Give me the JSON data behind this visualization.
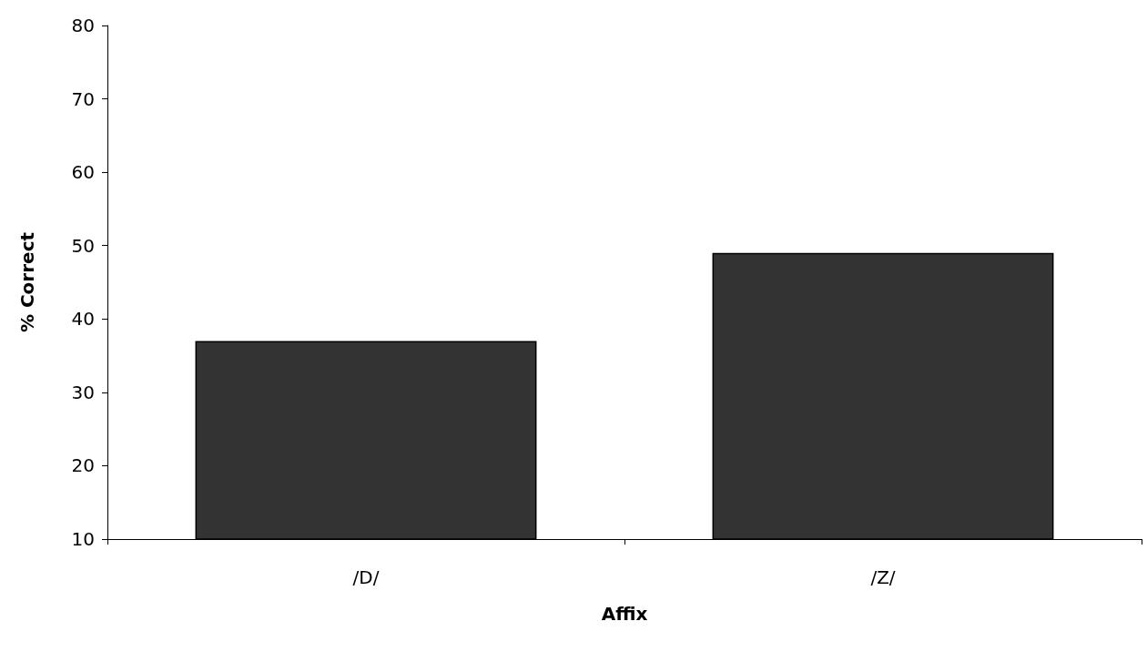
{
  "chart_data": {
    "type": "bar",
    "xlabel": "Affix",
    "ylabel": "% Correct",
    "categories": [
      "/D/",
      "/Z/"
    ],
    "values": [
      37,
      49
    ],
    "color": "#333333",
    "ylim": [
      10,
      80
    ],
    "yticks": [
      10,
      20,
      30,
      40,
      50,
      60,
      70,
      80
    ],
    "grid": false
  }
}
